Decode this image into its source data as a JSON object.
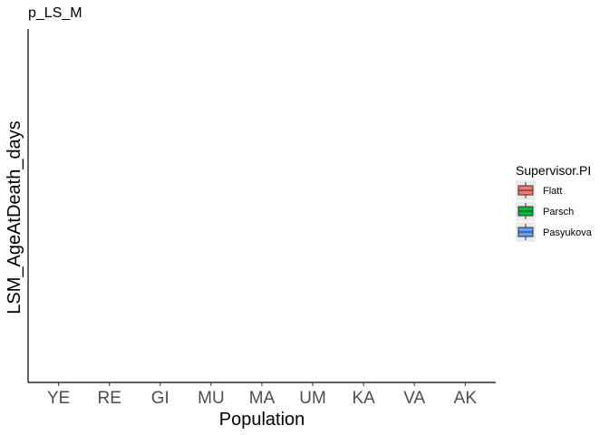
{
  "chart_data": {
    "type": "box",
    "title": "p_LS_M",
    "xlabel": "Population",
    "ylabel": "LSM_AgeAtDeath_days",
    "categories": [
      "YE",
      "RE",
      "GI",
      "MU",
      "MA",
      "UM",
      "KA",
      "VA",
      "AK"
    ],
    "series": [
      {
        "name": "Flatt",
        "color": "#F8766D",
        "values": []
      },
      {
        "name": "Parsch",
        "color": "#00BA38",
        "values": []
      },
      {
        "name": "Pasyukova",
        "color": "#619CFF",
        "values": []
      }
    ],
    "legend": {
      "title": "Supervisor.PI",
      "position": "right"
    },
    "grid": false
  }
}
